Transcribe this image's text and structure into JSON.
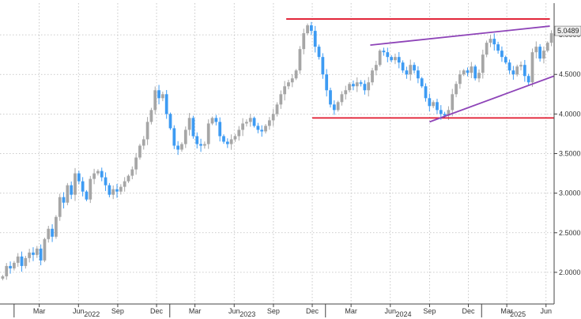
{
  "chart_data": {
    "type": "candlestick",
    "grid": true,
    "y_axis": {
      "position": "right",
      "ylim": [
        1.6,
        5.4
      ],
      "ticks": [
        2.0,
        2.5,
        3.0,
        3.5,
        4.0,
        4.5,
        5.0
      ],
      "tick_labels": [
        "2.0000",
        "2.5000",
        "3.0000",
        "3.5000",
        "4.0000",
        "4.5000",
        "5.0000"
      ]
    },
    "x_axis": {
      "start": "2021-11-29",
      "end": "2025-06-20",
      "ticks": [
        {
          "date": "2022-03-01",
          "label": "Mar"
        },
        {
          "date": "2022-06-01",
          "label": "Jun"
        },
        {
          "date": "2022-09-01",
          "label": "Sep"
        },
        {
          "date": "2022-12-01",
          "label": "Dec"
        },
        {
          "date": "2023-03-01",
          "label": "Mar"
        },
        {
          "date": "2023-06-01",
          "label": "Jun"
        },
        {
          "date": "2023-09-01",
          "label": "Sep"
        },
        {
          "date": "2023-12-01",
          "label": "Dec"
        },
        {
          "date": "2024-03-01",
          "label": "Mar"
        },
        {
          "date": "2024-06-01",
          "label": "Jun"
        },
        {
          "date": "2024-09-01",
          "label": "Sep"
        },
        {
          "date": "2024-12-01",
          "label": "Dec"
        },
        {
          "date": "2025-03-01",
          "label": "Mar"
        },
        {
          "date": "2025-06-01",
          "label": "Jun"
        }
      ],
      "year_labels": [
        {
          "year": "2022",
          "from": "2022-01-01",
          "to": "2023-01-01"
        },
        {
          "year": "2023",
          "from": "2023-01-01",
          "to": "2024-01-01"
        },
        {
          "year": "2024",
          "from": "2024-01-01",
          "to": "2025-01-01"
        },
        {
          "year": "2025",
          "from": "2025-01-01",
          "to": "2025-06-20"
        }
      ]
    },
    "closes": [
      1.95,
      2.08,
      2.05,
      2.12,
      2.2,
      2.08,
      2.18,
      2.25,
      2.22,
      2.3,
      2.15,
      2.42,
      2.55,
      2.45,
      2.7,
      2.95,
      2.88,
      3.1,
      2.98,
      3.25,
      3.15,
      3.02,
      2.92,
      3.18,
      3.25,
      3.28,
      3.2,
      3.1,
      2.98,
      3.05,
      3.02,
      3.08,
      3.15,
      3.22,
      3.3,
      3.45,
      3.6,
      3.68,
      3.9,
      4.05,
      4.3,
      4.2,
      4.25,
      4.0,
      3.82,
      3.6,
      3.55,
      3.62,
      3.8,
      3.95,
      3.72,
      3.62,
      3.6,
      3.62,
      3.88,
      3.95,
      3.9,
      3.72,
      3.65,
      3.62,
      3.68,
      3.72,
      3.8,
      3.88,
      3.9,
      3.95,
      3.85,
      3.8,
      3.78,
      3.85,
      3.92,
      4.0,
      4.12,
      4.25,
      4.35,
      4.4,
      4.45,
      4.55,
      4.82,
      5.02,
      5.12,
      5.05,
      4.85,
      4.72,
      4.5,
      4.3,
      4.12,
      4.05,
      4.15,
      4.25,
      4.3,
      4.38,
      4.35,
      4.4,
      4.38,
      4.3,
      4.4,
      4.55,
      4.62,
      4.8,
      4.78,
      4.72,
      4.68,
      4.72,
      4.65,
      4.55,
      4.5,
      4.62,
      4.55,
      4.45,
      4.35,
      4.2,
      4.1,
      4.15,
      4.05,
      4.0,
      3.98,
      4.05,
      4.25,
      4.38,
      4.5,
      4.55,
      4.52,
      4.6,
      4.45,
      4.52,
      4.75,
      4.9,
      4.95,
      4.88,
      4.8,
      4.72,
      4.65,
      4.55,
      4.5,
      4.6,
      4.62,
      4.48,
      4.4,
      4.78,
      4.85,
      4.7,
      4.8,
      4.9,
      5.02
    ],
    "overlays": [
      {
        "kind": "resistance",
        "color": "#e0182d",
        "y": 5.2,
        "x_from": "2023-10-01",
        "x_to": "2025-06-10"
      },
      {
        "kind": "support",
        "color": "#e0182d",
        "y": 3.95,
        "x_from": "2023-12-01",
        "x_to": "2025-06-20"
      },
      {
        "kind": "upper-trendline",
        "color": "#8e44b8",
        "points": [
          {
            "date": "2024-04-15",
            "y": 4.87
          },
          {
            "date": "2025-06-10",
            "y": 5.11
          }
        ]
      },
      {
        "kind": "lower-trendline",
        "color": "#8e44b8",
        "points": [
          {
            "date": "2024-09-01",
            "y": 3.9
          },
          {
            "date": "2025-06-20",
            "y": 4.48
          }
        ]
      }
    ],
    "last_price": {
      "value": 5.05,
      "label": "5.0489"
    },
    "colors": {
      "up": "#a6a6a6",
      "down": "#3d9bf3",
      "grid": "#bbbbbb",
      "resistance": "#e0182d",
      "trendline": "#8e44b8"
    }
  }
}
